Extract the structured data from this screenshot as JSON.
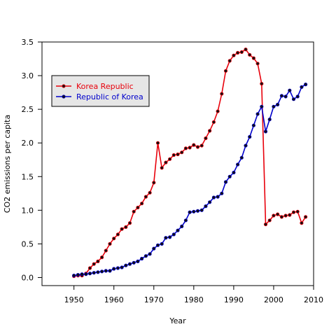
{
  "chart_data": {
    "type": "line",
    "title": "",
    "xlabel": "Year",
    "ylabel": "CO2 emissions per capita",
    "xlim": [
      1942,
      2010
    ],
    "ylim": [
      -0.12,
      3.5
    ],
    "x_ticks": [
      1950,
      1960,
      1970,
      1980,
      1990,
      2000,
      2010
    ],
    "y_ticks": [
      0.0,
      0.5,
      1.0,
      1.5,
      2.0,
      2.5,
      3.0,
      3.5
    ],
    "y_tick_labels": [
      "0.0",
      "0.5",
      "1.0",
      "1.5",
      "2.0",
      "2.5",
      "3.0",
      "3.5"
    ],
    "grid": false,
    "legend_position": "top-left",
    "series": [
      {
        "name": "Korea Republic",
        "color": "#e8000b",
        "x": [
          1950,
          1951,
          1952,
          1953,
          1954,
          1955,
          1956,
          1957,
          1958,
          1959,
          1960,
          1961,
          1962,
          1963,
          1964,
          1965,
          1966,
          1967,
          1968,
          1969,
          1970,
          1971,
          1972,
          1973,
          1974,
          1975,
          1976,
          1977,
          1978,
          1979,
          1980,
          1981,
          1982,
          1983,
          1984,
          1985,
          1986,
          1987,
          1988,
          1989,
          1990,
          1991,
          1992,
          1993,
          1994,
          1995,
          1996,
          1997,
          1998,
          1999,
          2000,
          2001,
          2002,
          2003,
          2004,
          2005,
          2006,
          2007,
          2008
        ],
        "y": [
          0.02,
          0.03,
          0.03,
          0.06,
          0.14,
          0.2,
          0.24,
          0.3,
          0.4,
          0.5,
          0.58,
          0.64,
          0.72,
          0.75,
          0.81,
          0.98,
          1.04,
          1.1,
          1.2,
          1.26,
          1.41,
          2.0,
          1.63,
          1.71,
          1.76,
          1.82,
          1.83,
          1.86,
          1.92,
          1.93,
          1.97,
          1.94,
          1.96,
          2.07,
          2.18,
          2.31,
          2.47,
          2.73,
          3.07,
          3.22,
          3.3,
          3.34,
          3.35,
          3.39,
          3.31,
          3.26,
          3.18,
          2.88,
          0.79,
          0.85,
          0.92,
          0.94,
          0.9,
          0.92,
          0.93,
          0.97,
          0.98,
          0.81,
          0.9
        ]
      },
      {
        "name": "Republic of Korea",
        "color": "#0000cc",
        "x": [
          1950,
          1951,
          1952,
          1953,
          1954,
          1955,
          1956,
          1957,
          1958,
          1959,
          1960,
          1961,
          1962,
          1963,
          1964,
          1965,
          1966,
          1967,
          1968,
          1969,
          1970,
          1971,
          1972,
          1973,
          1974,
          1975,
          1976,
          1977,
          1978,
          1979,
          1980,
          1981,
          1982,
          1983,
          1984,
          1985,
          1986,
          1987,
          1988,
          1989,
          1990,
          1991,
          1992,
          1993,
          1994,
          1995,
          1996,
          1997,
          1998,
          1999,
          2000,
          2001,
          2002,
          2003,
          2004,
          2005,
          2006,
          2007,
          2008
        ],
        "y": [
          0.03,
          0.04,
          0.05,
          0.05,
          0.06,
          0.07,
          0.08,
          0.09,
          0.1,
          0.1,
          0.13,
          0.14,
          0.15,
          0.18,
          0.2,
          0.22,
          0.24,
          0.28,
          0.32,
          0.35,
          0.43,
          0.48,
          0.5,
          0.59,
          0.6,
          0.64,
          0.7,
          0.76,
          0.85,
          0.97,
          0.98,
          0.99,
          1.0,
          1.06,
          1.12,
          1.19,
          1.2,
          1.25,
          1.42,
          1.5,
          1.56,
          1.68,
          1.78,
          1.96,
          2.09,
          2.26,
          2.43,
          2.54,
          2.17,
          2.35,
          2.54,
          2.57,
          2.7,
          2.69,
          2.78,
          2.65,
          2.69,
          2.83,
          2.87
        ]
      }
    ]
  }
}
